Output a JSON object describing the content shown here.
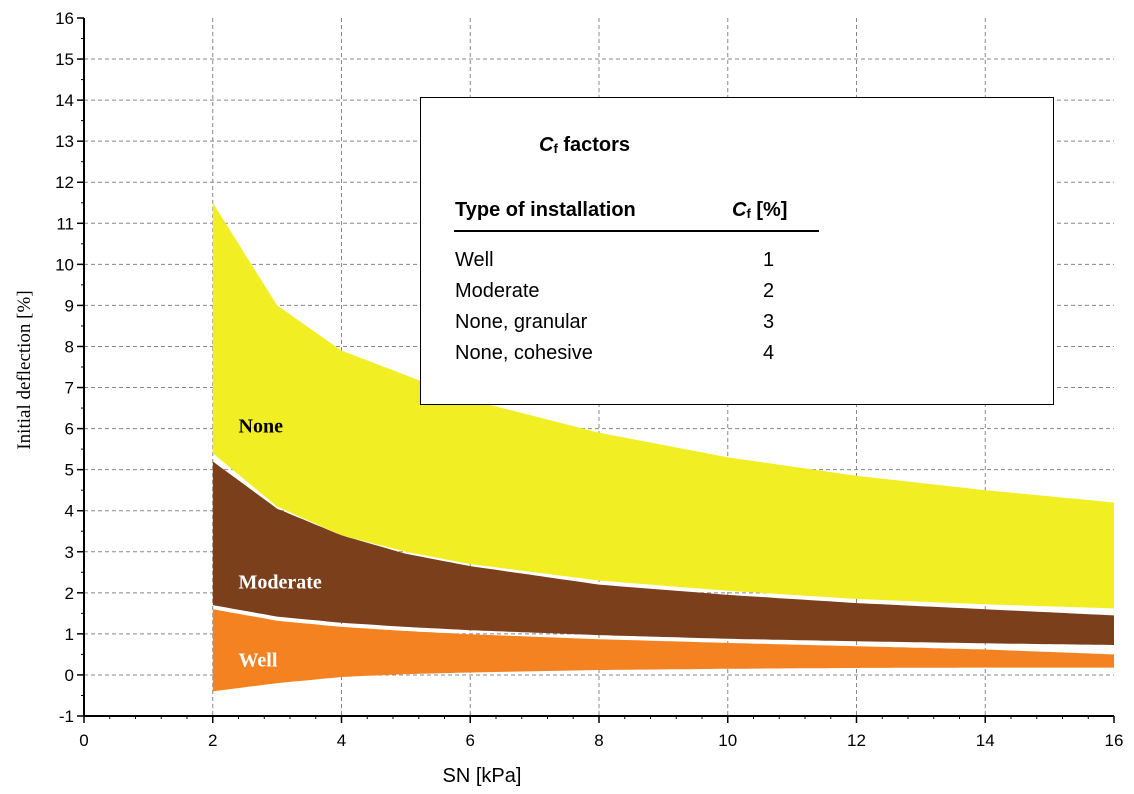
{
  "chart_data": {
    "type": "area",
    "xlabel": "SN [kPa]",
    "ylabel": "Initial deflection [%]",
    "xlim": [
      0,
      16
    ],
    "ylim": [
      -1,
      16
    ],
    "x_ticks": [
      "0",
      "2",
      "4",
      "6",
      "8",
      "10",
      "12",
      "14",
      "16"
    ],
    "y_ticks": [
      "-1",
      "0",
      "1",
      "2",
      "3",
      "4",
      "5",
      "6",
      "7",
      "8",
      "9",
      "10",
      "11",
      "12",
      "13",
      "14",
      "15",
      "16"
    ],
    "grid": true,
    "series": [
      {
        "name": "None",
        "color": "#f2ee24",
        "x": [
          2,
          3,
          4,
          5,
          6,
          8,
          10,
          12,
          14,
          16
        ],
        "lower": [
          5.4,
          4.1,
          3.4,
          3.0,
          2.7,
          2.3,
          2.05,
          1.85,
          1.72,
          1.62
        ],
        "upper": [
          11.5,
          9.0,
          7.9,
          7.3,
          6.7,
          5.9,
          5.3,
          4.85,
          4.5,
          4.2
        ]
      },
      {
        "name": "Moderate",
        "color": "#7b3f1c",
        "x": [
          2,
          3,
          4,
          5,
          6,
          8,
          10,
          12,
          14,
          16
        ],
        "lower": [
          1.7,
          1.42,
          1.27,
          1.17,
          1.09,
          0.97,
          0.88,
          0.82,
          0.77,
          0.73
        ],
        "upper": [
          5.2,
          4.05,
          3.4,
          2.95,
          2.65,
          2.2,
          1.95,
          1.75,
          1.6,
          1.45
        ]
      },
      {
        "name": "Well",
        "color": "#f58220",
        "x": [
          2,
          3,
          4,
          5,
          6,
          8,
          10,
          12,
          14,
          16
        ],
        "lower": [
          -0.4,
          -0.2,
          -0.05,
          0.02,
          0.06,
          0.12,
          0.15,
          0.17,
          0.18,
          0.18
        ],
        "upper": [
          1.6,
          1.32,
          1.17,
          1.07,
          0.99,
          0.87,
          0.78,
          0.7,
          0.62,
          0.5
        ]
      }
    ],
    "band_labels": [
      {
        "text": "None",
        "color": "#000000",
        "x": 2.4,
        "y": 5.9
      },
      {
        "text": "Moderate",
        "color": "#ffffff",
        "x": 2.4,
        "y": 2.1
      },
      {
        "text": "Well",
        "color": "#ffffff",
        "x": 2.4,
        "y": 0.2
      }
    ],
    "legend": {
      "title_main": "C",
      "title_sub": "f",
      "title_rest": " factors",
      "col1": "Type of installation",
      "col2_main": "C",
      "col2_sub": "f",
      "col2_rest": " [%]",
      "rows": [
        {
          "type": "Well",
          "cf": "1"
        },
        {
          "type": "Moderate",
          "cf": "2"
        },
        {
          "type": "None, granular",
          "cf": "3"
        },
        {
          "type": "None, cohesive",
          "cf": "4"
        }
      ]
    }
  }
}
